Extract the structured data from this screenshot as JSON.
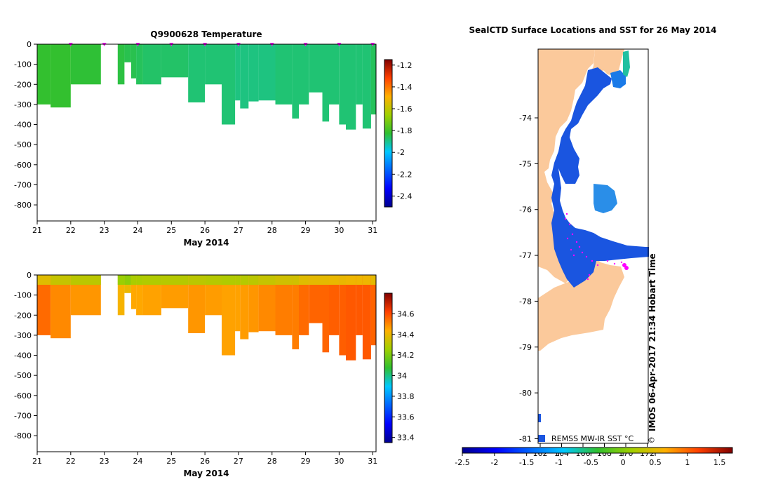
{
  "chart_data": [
    {
      "id": "temperature",
      "type": "heatmap",
      "title": "Q9900628  Temperature",
      "xlabel": "May 2014",
      "ylabel": "",
      "xlim": [
        21,
        31.1
      ],
      "ylim": [
        -880,
        0
      ],
      "x_ticks": [
        "21",
        "22",
        "23",
        "24",
        "25",
        "26",
        "27",
        "28",
        "29",
        "30",
        "31"
      ],
      "y_ticks": [
        "0",
        "-100",
        "-200",
        "-300",
        "-400",
        "-500",
        "-600",
        "-700",
        "-800"
      ],
      "colorbar": {
        "range": [
          -2.5,
          -1.15
        ],
        "ticks": [
          "-1.2",
          "-1.4",
          "-1.6",
          "-1.8",
          "-2",
          "-2.2",
          "-2.4"
        ]
      },
      "marker_x": [
        22,
        23,
        24,
        25,
        26,
        27,
        28,
        29,
        30,
        31
      ],
      "profiles": [
        {
          "x0": 21.0,
          "x1": 21.4,
          "depth": 300,
          "value": -1.82
        },
        {
          "x0": 21.4,
          "x1": 22.0,
          "depth": 315,
          "value": -1.82
        },
        {
          "x0": 22.0,
          "x1": 22.9,
          "depth": 200,
          "value": -1.83
        },
        {
          "x0": 23.4,
          "x1": 23.6,
          "depth": 200,
          "value": -1.84
        },
        {
          "x0": 23.6,
          "x1": 23.8,
          "depth": 90,
          "value": -1.85
        },
        {
          "x0": 23.8,
          "x1": 23.95,
          "depth": 170,
          "value": -1.85
        },
        {
          "x0": 23.95,
          "x1": 24.15,
          "depth": 200,
          "value": -1.86
        },
        {
          "x0": 24.15,
          "x1": 24.7,
          "depth": 200,
          "value": -1.87
        },
        {
          "x0": 24.7,
          "x1": 25.5,
          "depth": 165,
          "value": -1.87
        },
        {
          "x0": 25.5,
          "x1": 26.0,
          "depth": 290,
          "value": -1.88
        },
        {
          "x0": 26.0,
          "x1": 26.5,
          "depth": 200,
          "value": -1.88
        },
        {
          "x0": 26.5,
          "x1": 26.9,
          "depth": 400,
          "value": -1.88
        },
        {
          "x0": 26.9,
          "x1": 27.05,
          "depth": 280,
          "value": -1.89
        },
        {
          "x0": 27.05,
          "x1": 27.3,
          "depth": 320,
          "value": -1.89
        },
        {
          "x0": 27.3,
          "x1": 27.6,
          "depth": 285,
          "value": -1.89
        },
        {
          "x0": 27.6,
          "x1": 28.1,
          "depth": 280,
          "value": -1.89
        },
        {
          "x0": 28.1,
          "x1": 28.6,
          "depth": 300,
          "value": -1.88
        },
        {
          "x0": 28.6,
          "x1": 28.8,
          "depth": 370,
          "value": -1.88
        },
        {
          "x0": 28.8,
          "x1": 29.1,
          "depth": 300,
          "value": -1.88
        },
        {
          "x0": 29.1,
          "x1": 29.5,
          "depth": 240,
          "value": -1.88
        },
        {
          "x0": 29.5,
          "x1": 29.7,
          "depth": 385,
          "value": -1.88
        },
        {
          "x0": 29.7,
          "x1": 30.0,
          "depth": 300,
          "value": -1.88
        },
        {
          "x0": 30.0,
          "x1": 30.2,
          "depth": 400,
          "value": -1.88
        },
        {
          "x0": 30.2,
          "x1": 30.5,
          "depth": 425,
          "value": -1.88
        },
        {
          "x0": 30.5,
          "x1": 30.7,
          "depth": 300,
          "value": -1.88
        },
        {
          "x0": 30.7,
          "x1": 30.95,
          "depth": 420,
          "value": -1.88
        },
        {
          "x0": 30.95,
          "x1": 31.1,
          "depth": 350,
          "value": -1.86
        }
      ]
    },
    {
      "id": "salinity",
      "type": "heatmap",
      "title": "",
      "xlabel": "May 2014",
      "ylabel": "",
      "xlim": [
        21,
        31.1
      ],
      "ylim": [
        -880,
        0
      ],
      "x_ticks": [
        "21",
        "22",
        "23",
        "24",
        "25",
        "26",
        "27",
        "28",
        "29",
        "30",
        "31"
      ],
      "y_ticks": [
        "0",
        "-100",
        "-200",
        "-300",
        "-400",
        "-500",
        "-600",
        "-700",
        "-800"
      ],
      "colorbar": {
        "range": [
          33.35,
          34.8
        ],
        "ticks": [
          "34.6",
          "34.4",
          "34.2",
          "34",
          "33.8",
          "33.6",
          "33.4"
        ]
      },
      "profiles": [
        {
          "x0": 21.0,
          "x1": 21.4,
          "depth": 300,
          "value": 34.55
        },
        {
          "x0": 21.4,
          "x1": 22.0,
          "depth": 315,
          "value": 34.5
        },
        {
          "x0": 22.0,
          "x1": 22.9,
          "depth": 200,
          "value": 34.48
        },
        {
          "x0": 23.4,
          "x1": 23.6,
          "depth": 200,
          "value": 34.42
        },
        {
          "x0": 23.6,
          "x1": 23.8,
          "depth": 90,
          "value": 34.4
        },
        {
          "x0": 23.8,
          "x1": 23.95,
          "depth": 170,
          "value": 34.45
        },
        {
          "x0": 23.95,
          "x1": 24.15,
          "depth": 200,
          "value": 34.45
        },
        {
          "x0": 24.15,
          "x1": 24.7,
          "depth": 200,
          "value": 34.46
        },
        {
          "x0": 24.7,
          "x1": 25.5,
          "depth": 165,
          "value": 34.47
        },
        {
          "x0": 25.5,
          "x1": 26.0,
          "depth": 290,
          "value": 34.48
        },
        {
          "x0": 26.0,
          "x1": 26.5,
          "depth": 200,
          "value": 34.47
        },
        {
          "x0": 26.5,
          "x1": 26.9,
          "depth": 400,
          "value": 34.46
        },
        {
          "x0": 26.9,
          "x1": 27.05,
          "depth": 280,
          "value": 34.46
        },
        {
          "x0": 27.05,
          "x1": 27.3,
          "depth": 320,
          "value": 34.47
        },
        {
          "x0": 27.3,
          "x1": 27.6,
          "depth": 285,
          "value": 34.48
        },
        {
          "x0": 27.6,
          "x1": 28.1,
          "depth": 280,
          "value": 34.5
        },
        {
          "x0": 28.1,
          "x1": 28.6,
          "depth": 300,
          "value": 34.52
        },
        {
          "x0": 28.6,
          "x1": 28.8,
          "depth": 370,
          "value": 34.52
        },
        {
          "x0": 28.8,
          "x1": 29.1,
          "depth": 300,
          "value": 34.55
        },
        {
          "x0": 29.1,
          "x1": 29.5,
          "depth": 240,
          "value": 34.56
        },
        {
          "x0": 29.5,
          "x1": 29.7,
          "depth": 385,
          "value": 34.56
        },
        {
          "x0": 29.7,
          "x1": 30.0,
          "depth": 300,
          "value": 34.57
        },
        {
          "x0": 30.0,
          "x1": 30.2,
          "depth": 400,
          "value": 34.57
        },
        {
          "x0": 30.2,
          "x1": 30.5,
          "depth": 425,
          "value": 34.58
        },
        {
          "x0": 30.5,
          "x1": 30.7,
          "depth": 300,
          "value": 34.58
        },
        {
          "x0": 30.7,
          "x1": 30.95,
          "depth": 420,
          "value": 34.58
        },
        {
          "x0": 30.95,
          "x1": 31.1,
          "depth": 350,
          "value": 34.56
        }
      ]
    },
    {
      "id": "sst-map",
      "type": "heatmap",
      "title": "SealCTD Surface Locations and SST for 26 May 2014",
      "ylabel": "",
      "ylim": [
        -81.1,
        -72.5
      ],
      "y_ticks": [
        "-74",
        "-75",
        "-76",
        "-77",
        "-78",
        "-79",
        "-80",
        "-81"
      ],
      "x_ticks": [
        "162",
        "164",
        "166",
        "168",
        "170",
        "172"
      ],
      "colorbar": {
        "range": [
          -2.5,
          1.7
        ],
        "ticks": [
          "-2.5",
          "-2",
          "-1.5",
          "-1",
          "-0.5",
          "0",
          "0.5",
          "1",
          "1.5"
        ],
        "label": "REMSS MW-IR SST °C"
      },
      "stamp": "IMOS 06-Apr-2017 21:34 Hobart Time",
      "copyright": "©"
    }
  ],
  "colors": {
    "land": "#fbc99b",
    "sea_ice_blue": "#1a55e0",
    "marker": "#ff00ff",
    "axis": "#000000"
  }
}
